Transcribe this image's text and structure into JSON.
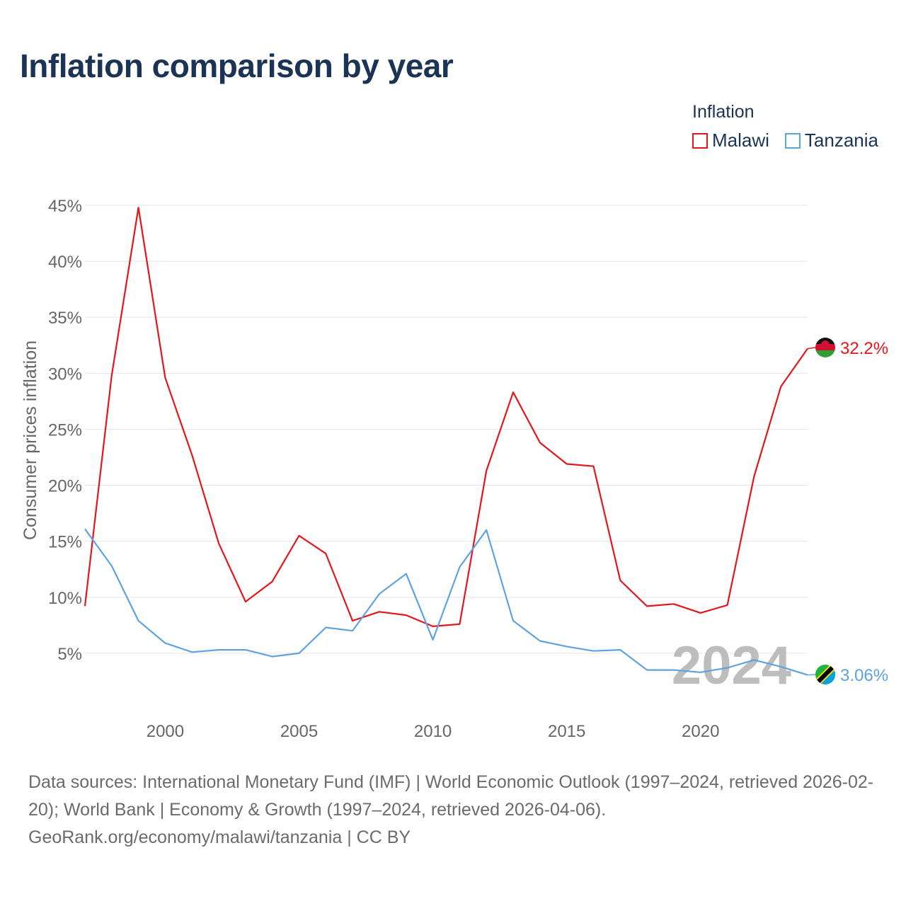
{
  "title": "Inflation comparison by year",
  "legend": {
    "title": "Inflation",
    "items": [
      {
        "label": "Malawi",
        "color": "#e6151c"
      },
      {
        "label": "Tanzania",
        "color": "#5ea3e0"
      }
    ]
  },
  "chart_data": {
    "type": "line",
    "title": "Inflation comparison by year",
    "xlabel": "",
    "ylabel": "Consumer prices inflation",
    "xlim": [
      1997,
      2024
    ],
    "ylim": [
      0,
      45
    ],
    "yticks": [
      5,
      10,
      15,
      20,
      25,
      30,
      35,
      40,
      45
    ],
    "ytick_labels": [
      "5%",
      "10%",
      "15%",
      "20%",
      "25%",
      "30%",
      "35%",
      "40%",
      "45%"
    ],
    "xticks": [
      2000,
      2005,
      2010,
      2015,
      2020
    ],
    "xtick_labels": [
      "2000",
      "2005",
      "2010",
      "2015",
      "2020"
    ],
    "grid": true,
    "year_watermark": "2024",
    "x": [
      1997,
      1998,
      1999,
      2000,
      2001,
      2002,
      2003,
      2004,
      2005,
      2006,
      2007,
      2008,
      2009,
      2010,
      2011,
      2012,
      2013,
      2014,
      2015,
      2016,
      2017,
      2018,
      2019,
      2020,
      2021,
      2022,
      2023,
      2024
    ],
    "series": [
      {
        "name": "Malawi",
        "color": "#e6151c",
        "end_label": "32.2%",
        "values": [
          9.2,
          29.8,
          44.8,
          29.6,
          22.7,
          14.8,
          9.6,
          11.4,
          15.5,
          13.9,
          7.9,
          8.7,
          8.4,
          7.4,
          7.6,
          21.3,
          28.3,
          23.8,
          21.9,
          21.7,
          11.5,
          9.2,
          9.4,
          8.6,
          9.3,
          20.8,
          28.8,
          32.2
        ]
      },
      {
        "name": "Tanzania",
        "color": "#5ea3e0",
        "end_label": "3.06%",
        "values": [
          16.1,
          12.8,
          7.9,
          5.9,
          5.1,
          5.3,
          5.3,
          4.7,
          5.0,
          7.3,
          7.0,
          10.3,
          12.1,
          6.2,
          12.7,
          16.0,
          7.9,
          6.1,
          5.6,
          5.2,
          5.3,
          3.5,
          3.5,
          3.3,
          3.7,
          4.4,
          3.8,
          3.06
        ]
      }
    ]
  },
  "source": {
    "line1": "Data sources: International Monetary Fund (IMF) | World Economic Outlook (1997–2024, retrieved 2026-02-20); World Bank | Economy & Growth (1997–2024, retrieved 2026-04-06).",
    "line2": "GeoRank.org/economy/malawi/tanzania | CC BY"
  }
}
